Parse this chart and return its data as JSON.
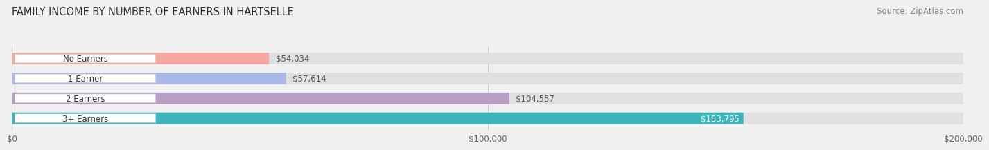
{
  "title": "FAMILY INCOME BY NUMBER OF EARNERS IN HARTSELLE",
  "source": "Source: ZipAtlas.com",
  "categories": [
    "No Earners",
    "1 Earner",
    "2 Earners",
    "3+ Earners"
  ],
  "values": [
    54034,
    57614,
    104557,
    153795
  ],
  "labels": [
    "$54,034",
    "$57,614",
    "$104,557",
    "$153,795"
  ],
  "bar_colors": [
    "#f4a8a0",
    "#aab9e8",
    "#b89ec4",
    "#3ab5bb"
  ],
  "label_colors": [
    "#555555",
    "#555555",
    "#555555",
    "#ffffff"
  ],
  "xmax": 200000,
  "xticks": [
    0,
    100000,
    200000
  ],
  "xticklabels": [
    "$0",
    "$100,000",
    "$200,000"
  ],
  "background_color": "#f0f0f0",
  "bar_background_color": "#e0e0e0",
  "title_fontsize": 10.5,
  "source_fontsize": 8.5,
  "label_fontsize": 8.5,
  "category_fontsize": 8.5,
  "bar_height": 0.58
}
